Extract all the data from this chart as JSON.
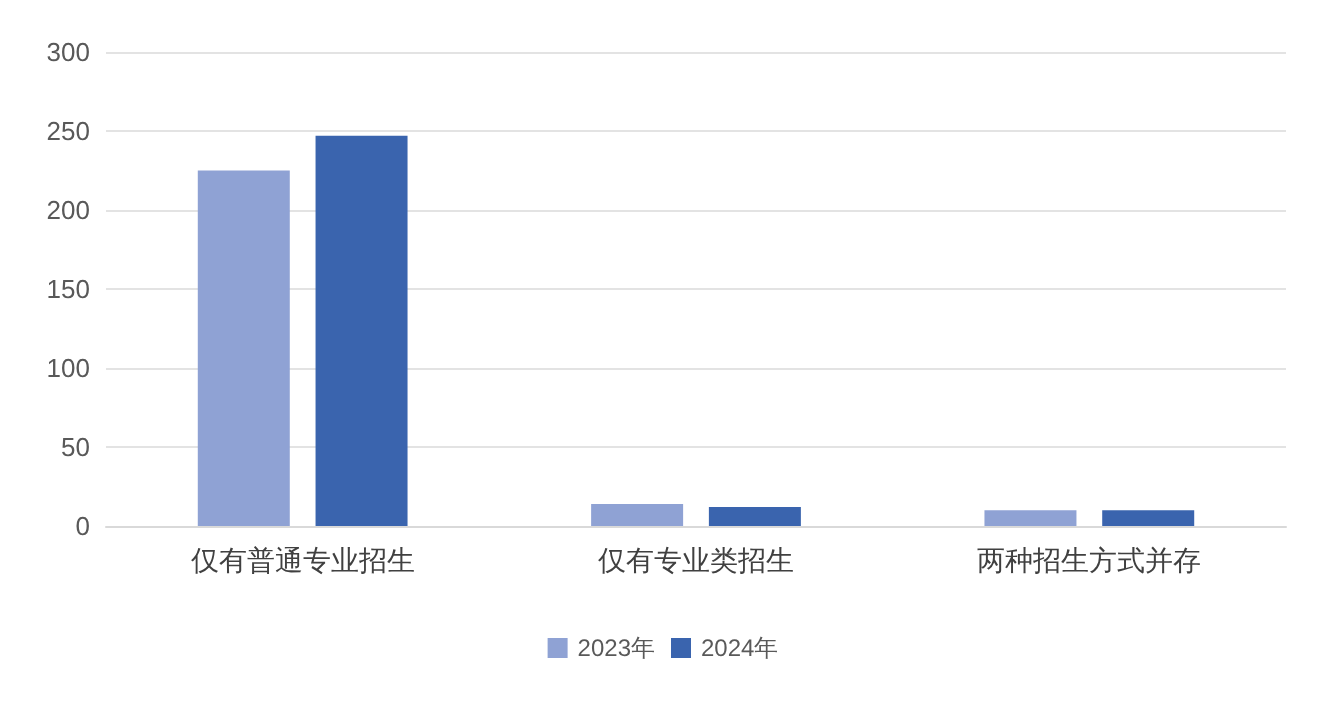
{
  "chart_data": {
    "type": "bar",
    "categories": [
      "仅有普通专业招生",
      "仅有专业类招生",
      "两种招生方式并存"
    ],
    "series": [
      {
        "name": "2023年",
        "color": "#8fa2d4",
        "values": [
          225,
          14,
          10
        ]
      },
      {
        "name": "2024年",
        "color": "#3a64ae",
        "values": [
          247,
          12,
          10
        ]
      }
    ],
    "ylim": [
      0,
      300
    ],
    "yticks": [
      0,
      50,
      100,
      150,
      200,
      250,
      300
    ],
    "grid": "y",
    "legend": "bottom"
  }
}
